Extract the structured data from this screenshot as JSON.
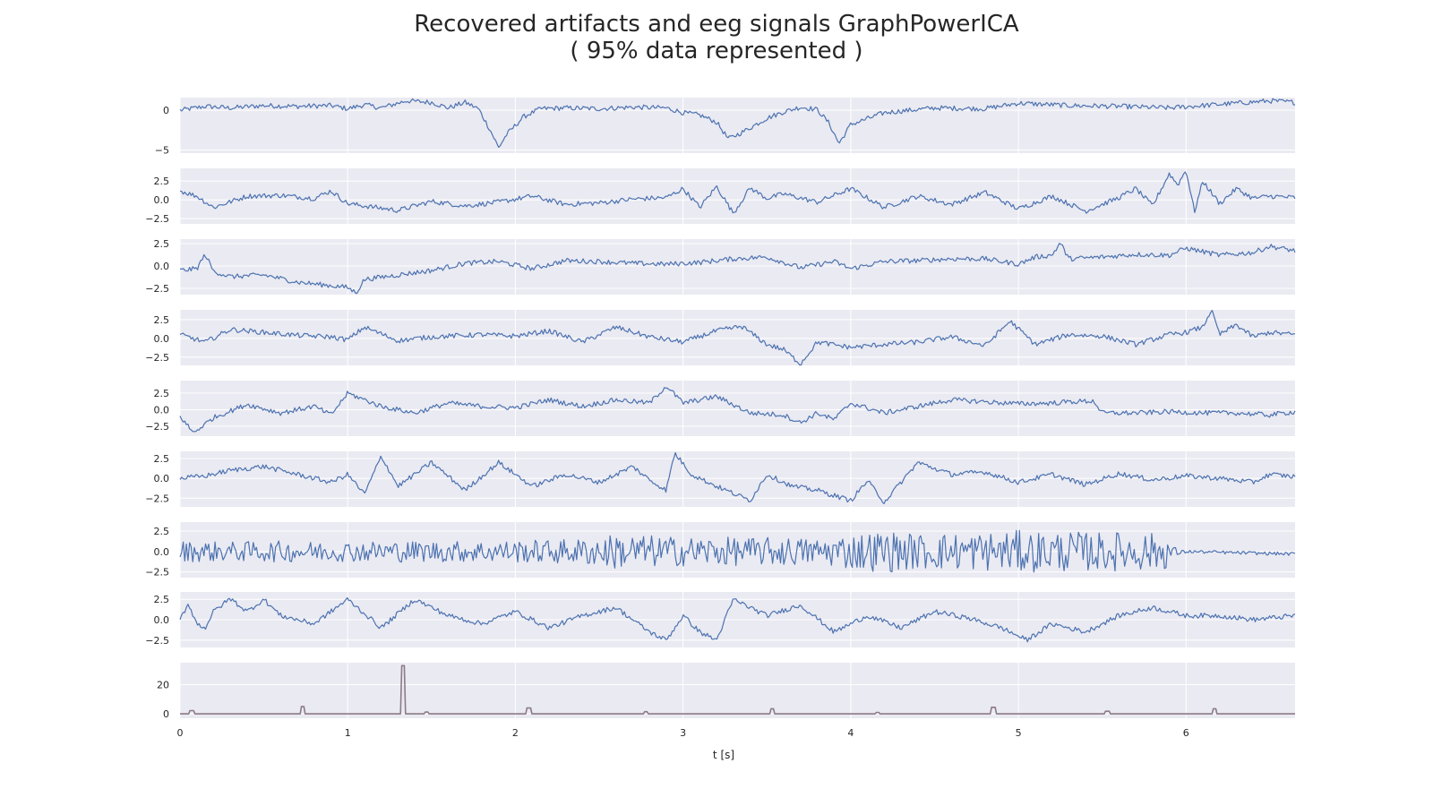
{
  "chart": {
    "title": "Recovered artifacts and eeg signals GraphPowerICA",
    "subtitle": "( 95% data represented )"
  },
  "chart_data": {
    "type": "line",
    "xlabel": "t [s]",
    "xlim": [
      0,
      6.65
    ],
    "xticks": [
      "0",
      "1",
      "2",
      "3",
      "4",
      "5",
      "6"
    ],
    "grid": true,
    "colors": {
      "signal": "#4c72b0",
      "artifact": "#8c7b87",
      "panel_bg": "#eaeaf2",
      "grid": "#ffffff"
    },
    "panels": [
      {
        "ylim": [
          -5.4,
          1.6
        ],
        "yticks": [
          {
            "v": 0,
            "label": "0"
          },
          {
            "v": -5,
            "label": "−5"
          }
        ],
        "color": "#4c72b0",
        "x": [
          0,
          0.15,
          0.3,
          0.5,
          0.7,
          0.9,
          1.0,
          1.1,
          1.2,
          1.35,
          1.5,
          1.6,
          1.7,
          1.78,
          1.85,
          1.9,
          1.95,
          2.05,
          2.15,
          2.3,
          2.5,
          2.7,
          2.9,
          3.0,
          3.1,
          3.2,
          3.27,
          3.35,
          3.5,
          3.6,
          3.7,
          3.8,
          3.87,
          3.93,
          4.0,
          4.2,
          4.5,
          4.8,
          5.0,
          5.3,
          5.6,
          5.9,
          6.1,
          6.3,
          6.5,
          6.65
        ],
        "y": [
          0,
          0.5,
          0.3,
          0.6,
          0.5,
          0.6,
          0.2,
          0.7,
          0.3,
          1.2,
          1.0,
          0.3,
          1.0,
          0.2,
          -2.5,
          -4.7,
          -3.0,
          -0.8,
          0.2,
          0.3,
          0.2,
          0.4,
          0.3,
          -0.3,
          -0.6,
          -1.5,
          -3.6,
          -2.8,
          -1.0,
          -0.2,
          0.4,
          0.1,
          -1.6,
          -4.2,
          -1.8,
          -0.3,
          0.3,
          0.2,
          0.9,
          0.6,
          0.5,
          0.3,
          0.6,
          0.9,
          1.2,
          1.0
        ]
      },
      {
        "ylim": [
          -3.2,
          4.2
        ],
        "yticks": [
          {
            "v": 2.5,
            "label": "2.5"
          },
          {
            "v": 0,
            "label": "0.0"
          },
          {
            "v": -2.5,
            "label": "−2.5"
          }
        ],
        "color": "#4c72b0",
        "x": [
          0,
          0.1,
          0.2,
          0.4,
          0.6,
          0.8,
          0.9,
          1.0,
          1.1,
          1.3,
          1.5,
          1.7,
          1.9,
          2.1,
          2.3,
          2.5,
          2.7,
          2.9,
          3.0,
          3.1,
          3.2,
          3.3,
          3.4,
          3.5,
          3.6,
          3.8,
          4.0,
          4.2,
          4.4,
          4.6,
          4.8,
          5.0,
          5.2,
          5.4,
          5.6,
          5.7,
          5.8,
          5.9,
          5.95,
          6.0,
          6.05,
          6.1,
          6.2,
          6.3,
          6.4,
          6.5,
          6.65
        ],
        "y": [
          1.2,
          0.5,
          -1.0,
          0.5,
          0.6,
          0.2,
          1.2,
          -0.5,
          -0.8,
          -1.4,
          -0.2,
          -0.8,
          -0.3,
          0.5,
          -0.6,
          -0.4,
          0.1,
          0.3,
          1.5,
          -1.0,
          1.8,
          -1.8,
          1.6,
          0.2,
          0.8,
          -0.3,
          1.5,
          -1.0,
          0.5,
          -0.6,
          1.0,
          -1.2,
          0.5,
          -1.5,
          0.3,
          1.5,
          -0.8,
          3.5,
          2.0,
          4.0,
          -1.6,
          2.5,
          -0.5,
          1.5,
          0.2,
          0.5,
          0.3
        ]
      },
      {
        "ylim": [
          -3.2,
          3.0
        ],
        "yticks": [
          {
            "v": 2.5,
            "label": "2.5"
          },
          {
            "v": 0,
            "label": "0.0"
          },
          {
            "v": -2.5,
            "label": "−2.5"
          }
        ],
        "color": "#4c72b0",
        "x": [
          0,
          0.1,
          0.15,
          0.2,
          0.3,
          0.5,
          0.7,
          0.9,
          1.0,
          1.05,
          1.1,
          1.3,
          1.5,
          1.7,
          1.9,
          2.1,
          2.3,
          2.5,
          2.7,
          2.9,
          3.1,
          3.3,
          3.5,
          3.7,
          3.9,
          4.0,
          4.2,
          4.4,
          4.6,
          4.8,
          5.0,
          5.1,
          5.2,
          5.25,
          5.3,
          5.5,
          5.7,
          5.9,
          6.0,
          6.2,
          6.4,
          6.5,
          6.65
        ],
        "y": [
          -0.5,
          -0.3,
          1.3,
          -0.6,
          -1.2,
          -1.0,
          -1.8,
          -2.2,
          -2.4,
          -3.0,
          -1.5,
          -1.0,
          -0.5,
          0.3,
          0.5,
          -0.3,
          0.6,
          0.5,
          0.3,
          0.2,
          0.4,
          0.8,
          1.0,
          -0.2,
          0.5,
          -0.3,
          0.5,
          0.6,
          0.8,
          0.8,
          0.2,
          1.0,
          1.2,
          2.6,
          0.8,
          1.0,
          1.3,
          1.2,
          2.0,
          1.2,
          1.5,
          2.2,
          1.7
        ]
      },
      {
        "ylim": [
          -3.6,
          3.8
        ],
        "yticks": [
          {
            "v": 2.5,
            "label": "2.5"
          },
          {
            "v": 0,
            "label": "0.0"
          },
          {
            "v": -2.5,
            "label": "−2.5"
          }
        ],
        "color": "#4c72b0",
        "x": [
          0,
          0.15,
          0.3,
          0.5,
          0.7,
          0.9,
          1.0,
          1.1,
          1.3,
          1.5,
          1.8,
          2.0,
          2.2,
          2.4,
          2.6,
          2.8,
          3.0,
          3.2,
          3.35,
          3.5,
          3.6,
          3.7,
          3.8,
          4.0,
          4.2,
          4.4,
          4.6,
          4.8,
          4.95,
          5.1,
          5.3,
          5.5,
          5.7,
          5.9,
          6.0,
          6.1,
          6.15,
          6.2,
          6.3,
          6.4,
          6.5,
          6.65
        ],
        "y": [
          0.5,
          -0.5,
          1.2,
          0.8,
          0.4,
          0.2,
          -0.2,
          1.5,
          -0.3,
          0.2,
          0.5,
          0.3,
          1.0,
          -0.5,
          1.5,
          0.2,
          -0.5,
          1.0,
          1.6,
          -0.8,
          -1.5,
          -3.4,
          -0.5,
          -1.2,
          -0.8,
          -0.5,
          0.2,
          -1.0,
          2.3,
          -0.8,
          0.5,
          0.3,
          -0.8,
          0.5,
          0.8,
          1.5,
          3.8,
          0.5,
          1.8,
          0.2,
          0.8,
          0.5
        ]
      },
      {
        "ylim": [
          -4.0,
          4.4
        ],
        "yticks": [
          {
            "v": 2.5,
            "label": "2.5"
          },
          {
            "v": 0,
            "label": "0.0"
          },
          {
            "v": -2.5,
            "label": "−2.5"
          }
        ],
        "color": "#4c72b0",
        "x": [
          0,
          0.08,
          0.2,
          0.4,
          0.6,
          0.8,
          0.9,
          1.0,
          1.2,
          1.4,
          1.6,
          1.8,
          2.0,
          2.2,
          2.4,
          2.6,
          2.8,
          2.9,
          3.0,
          3.2,
          3.4,
          3.6,
          3.7,
          3.8,
          3.9,
          4.0,
          4.2,
          4.4,
          4.6,
          4.8,
          5.0,
          5.2,
          5.3,
          5.45,
          5.5,
          5.7,
          5.9,
          6.1,
          6.3,
          6.5,
          6.65
        ],
        "y": [
          -1.0,
          -3.5,
          -1.2,
          0.8,
          -0.5,
          0.5,
          -0.8,
          2.5,
          0.5,
          -0.5,
          1.0,
          0.5,
          0.3,
          1.5,
          0.5,
          1.5,
          1.0,
          3.6,
          1.0,
          2.0,
          -0.5,
          -0.8,
          -2.0,
          -0.5,
          -1.5,
          1.0,
          -0.5,
          0.5,
          1.5,
          1.2,
          0.9,
          1.0,
          1.2,
          1.3,
          -0.5,
          -0.5,
          -0.3,
          -0.5,
          -0.5,
          -0.8,
          -0.3
        ]
      },
      {
        "ylim": [
          -3.6,
          3.4
        ],
        "yticks": [
          {
            "v": 2.5,
            "label": "2.5"
          },
          {
            "v": 0,
            "label": "0.0"
          },
          {
            "v": -2.5,
            "label": "−2.5"
          }
        ],
        "color": "#4c72b0",
        "x": [
          0,
          0.15,
          0.3,
          0.5,
          0.7,
          0.9,
          1.0,
          1.1,
          1.2,
          1.3,
          1.5,
          1.7,
          1.9,
          2.1,
          2.3,
          2.5,
          2.7,
          2.8,
          2.9,
          2.95,
          3.05,
          3.2,
          3.4,
          3.5,
          3.65,
          3.8,
          4.0,
          4.1,
          4.2,
          4.3,
          4.4,
          4.6,
          4.8,
          5.0,
          5.2,
          5.4,
          5.6,
          5.8,
          6.0,
          6.2,
          6.4,
          6.5,
          6.65
        ],
        "y": [
          0,
          0.3,
          1.0,
          1.5,
          0.5,
          -0.5,
          0.5,
          -2.0,
          2.8,
          -1.0,
          2.0,
          -1.5,
          2.0,
          -1.0,
          0.5,
          -0.5,
          1.5,
          -0.2,
          -1.5,
          3.2,
          0.5,
          -1.0,
          -2.8,
          0.5,
          -1.0,
          -1.5,
          -2.8,
          -0.3,
          -3.0,
          -0.5,
          2.0,
          0.5,
          0.8,
          -0.5,
          0.5,
          -0.8,
          0.6,
          -0.2,
          0.3,
          0.0,
          -0.5,
          0.5,
          0.2
        ]
      },
      {
        "ylim": [
          -3.2,
          3.6
        ],
        "yticks": [
          {
            "v": 2.5,
            "label": "2.5"
          },
          {
            "v": 0,
            "label": "0.0"
          },
          {
            "v": -2.5,
            "label": "−2.5"
          }
        ],
        "color": "#4c72b0",
        "hf": true,
        "x": [
          0,
          0.3,
          0.6,
          0.9,
          1.2,
          1.5,
          1.8,
          2.1,
          2.4,
          2.6,
          2.8,
          3.0,
          3.2,
          3.4,
          3.6,
          3.8,
          4.0,
          4.2,
          4.4,
          4.6,
          4.8,
          5.0,
          5.2,
          5.4,
          5.6,
          5.8,
          5.9,
          5.95,
          6.0,
          6.2,
          6.4,
          6.65
        ],
        "y": [
          0,
          0,
          0,
          0,
          0,
          0,
          0,
          0,
          0,
          0,
          0,
          0,
          0,
          0,
          0,
          0,
          0,
          0,
          0,
          0,
          0,
          0,
          0,
          0,
          0,
          0,
          -0.1,
          -0.2,
          0.0,
          -0.1,
          -0.2,
          -0.3
        ],
        "amp": [
          1.3,
          1.2,
          1.3,
          1.2,
          1.3,
          1.3,
          1.3,
          1.4,
          1.6,
          2.2,
          2.0,
          1.8,
          1.8,
          1.7,
          1.8,
          1.6,
          2.2,
          2.6,
          2.2,
          2.3,
          2.4,
          2.6,
          2.5,
          2.4,
          2.4,
          2.3,
          2.0,
          0.3,
          0.2,
          0.2,
          0.2,
          0.2
        ]
      },
      {
        "ylim": [
          -3.4,
          3.4
        ],
        "yticks": [
          {
            "v": 2.5,
            "label": "2.5"
          },
          {
            "v": 0,
            "label": "0.0"
          },
          {
            "v": -2.5,
            "label": "−2.5"
          }
        ],
        "color": "#4c72b0",
        "x": [
          0,
          0.05,
          0.1,
          0.15,
          0.2,
          0.3,
          0.4,
          0.5,
          0.6,
          0.8,
          1.0,
          1.2,
          1.4,
          1.6,
          1.8,
          2.0,
          2.2,
          2.4,
          2.6,
          2.8,
          2.9,
          3.0,
          3.1,
          3.2,
          3.3,
          3.4,
          3.5,
          3.7,
          3.9,
          4.1,
          4.3,
          4.5,
          4.7,
          4.9,
          5.05,
          5.2,
          5.4,
          5.6,
          5.8,
          6.0,
          6.2,
          6.4,
          6.65
        ],
        "y": [
          0,
          2.0,
          -0.5,
          -1.0,
          1.0,
          2.6,
          1.0,
          2.5,
          0.5,
          -0.5,
          2.5,
          -1.0,
          2.5,
          0.5,
          -0.5,
          1.0,
          -1.0,
          0.5,
          1.5,
          -1.5,
          -2.5,
          0.5,
          -1.5,
          -2.5,
          2.5,
          1.5,
          0.5,
          1.8,
          -1.5,
          0.5,
          -1.0,
          1.0,
          0.2,
          -1.0,
          -2.5,
          -0.5,
          -1.5,
          0.5,
          1.5,
          0.5,
          0.5,
          0.0,
          0.5
        ]
      },
      {
        "ylim": [
          -3,
          35
        ],
        "yticks": [
          {
            "v": 20,
            "label": "20"
          },
          {
            "v": 0,
            "label": "0"
          }
        ],
        "color": "#8c7b87",
        "spikes": true,
        "x": [
          0.07,
          0.73,
          1.33,
          1.47,
          2.08,
          2.78,
          3.53,
          4.16,
          4.85,
          5.53,
          6.17
        ],
        "y": [
          2.2,
          5,
          33,
          1.2,
          4,
          1.5,
          3.5,
          1.0,
          4.5,
          1.8,
          3.5
        ]
      }
    ]
  }
}
